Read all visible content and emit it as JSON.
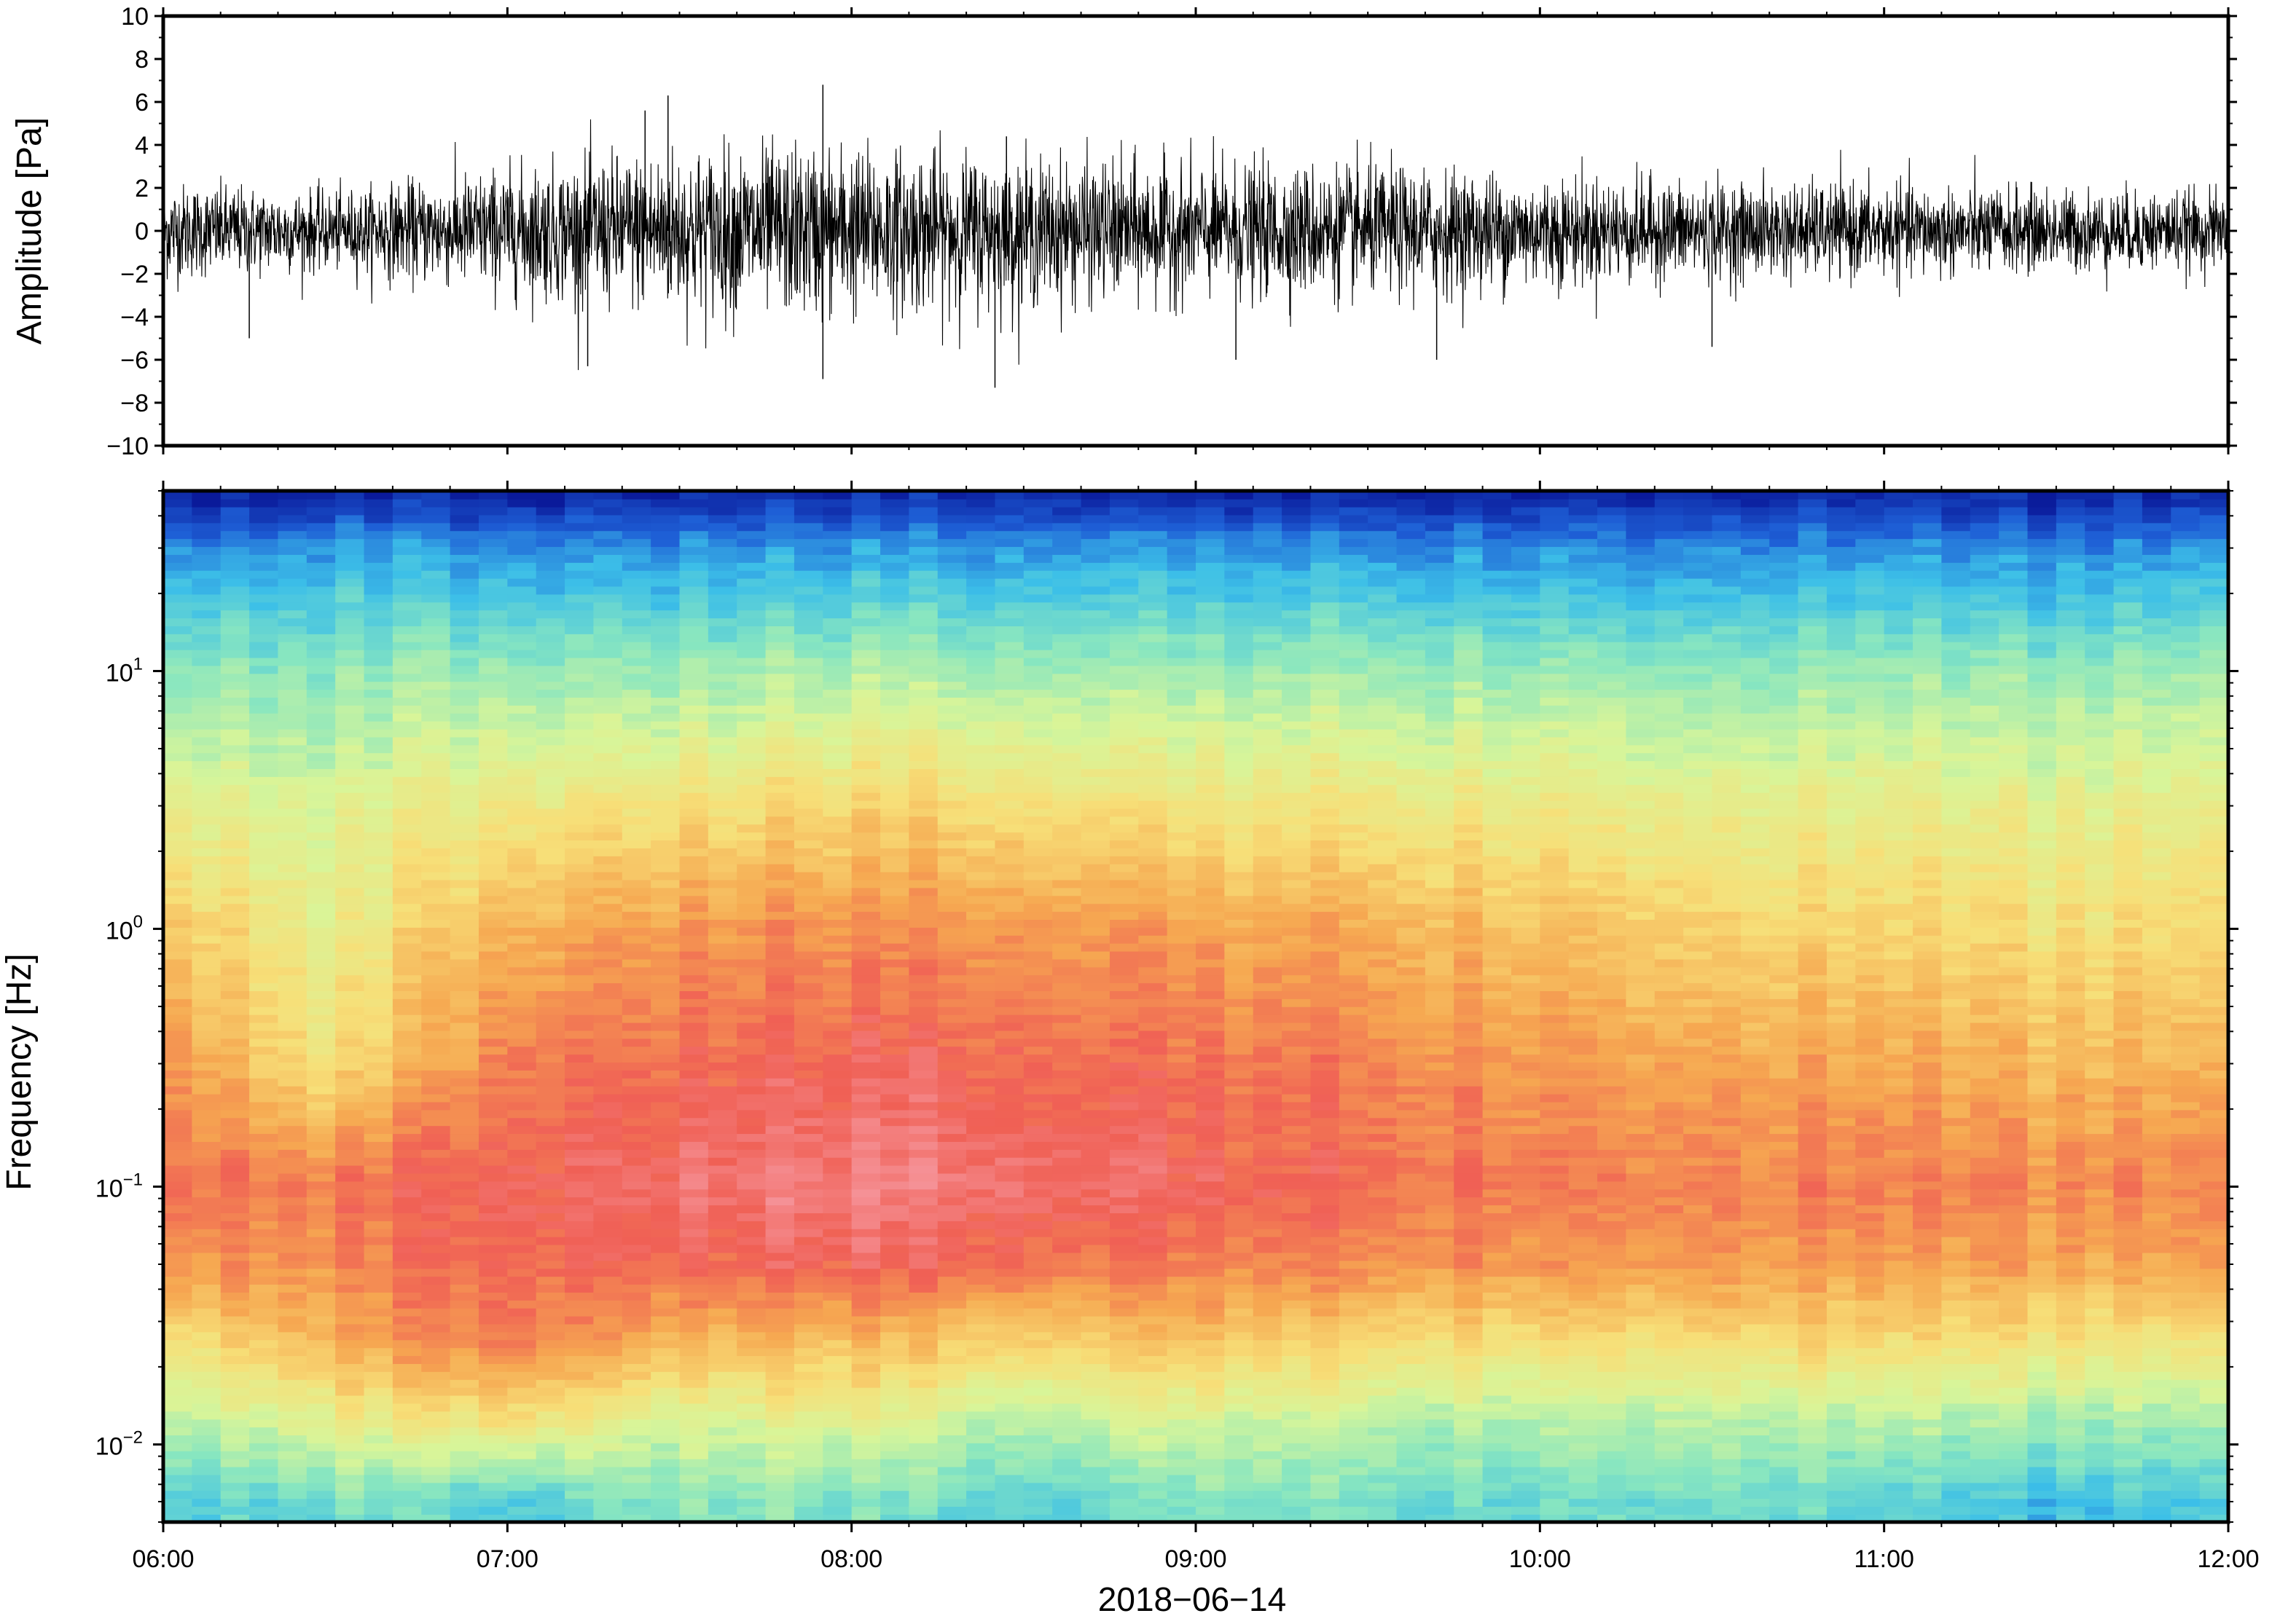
{
  "chart_data": [
    {
      "type": "line",
      "ylabel": "Amplitude [Pa]",
      "xlabel": "",
      "ylim": [
        -10,
        10
      ],
      "y_ticks": [
        -10,
        -8,
        -6,
        -4,
        -2,
        0,
        2,
        4,
        6,
        8,
        10
      ],
      "y_tick_labels": [
        "−10",
        "−8",
        "−6",
        "−4",
        "−2",
        "0",
        "2",
        "4",
        "6",
        "8",
        "10"
      ],
      "x_range": [
        "06:00",
        "12:00"
      ],
      "line_color": "#000000",
      "grid": false,
      "envelope": {
        "time": [
          "06:00",
          "06:30",
          "07:00",
          "07:30",
          "08:00",
          "08:30",
          "09:00",
          "09:30",
          "10:00",
          "10:30",
          "11:00",
          "11:30",
          "12:00"
        ],
        "amplitude": [
          2.0,
          1.6,
          2.6,
          3.4,
          3.5,
          3.0,
          2.7,
          2.7,
          2.3,
          2.0,
          1.9,
          1.7,
          1.6
        ]
      },
      "peaks": [
        {
          "time": "06:15",
          "value": -5.0
        },
        {
          "time": "07:14",
          "value": -6.3
        },
        {
          "time": "07:24",
          "value": 5.6
        },
        {
          "time": "07:28",
          "value": 6.3
        },
        {
          "time": "07:55",
          "value": 6.8
        },
        {
          "time": "07:55",
          "value": -6.9
        },
        {
          "time": "08:25",
          "value": -7.3
        },
        {
          "time": "08:27",
          "value": 4.4
        },
        {
          "time": "09:07",
          "value": -6.0
        },
        {
          "time": "09:42",
          "value": -6.0
        },
        {
          "time": "10:30",
          "value": -5.4
        }
      ]
    },
    {
      "type": "heatmap",
      "ylabel": "Frequency [Hz]",
      "xlabel": "2018−06−14",
      "yscale": "log",
      "ylim": [
        0.005,
        50
      ],
      "y_ticks": [
        0.01,
        0.1,
        1,
        10
      ],
      "y_tick_labels": [
        {
          "base": "10",
          "exp": "−2"
        },
        {
          "base": "10",
          "exp": "−1"
        },
        {
          "base": "10",
          "exp": "0"
        },
        {
          "base": "10",
          "exp": "1"
        }
      ],
      "x_ticks": [
        "06:00",
        "07:00",
        "08:00",
        "09:00",
        "10:00",
        "11:00",
        "12:00"
      ],
      "x_range": [
        "06:00",
        "12:00"
      ],
      "colormap": [
        "#0a1a9a",
        "#1e5fd6",
        "#3cbfe8",
        "#88e6c0",
        "#d8f599",
        "#f7df78",
        "#f6a851",
        "#f06055",
        "#f69aa2"
      ],
      "power_range": [
        0,
        1
      ],
      "power_levels": {
        "time": [
          "06:00",
          "06:30",
          "07:00",
          "07:30",
          "08:00",
          "08:30",
          "09:00",
          "09:30",
          "10:00",
          "10:30",
          "11:00",
          "11:30",
          "12:00"
        ],
        "frequency_hz": [
          0.006,
          0.012,
          0.025,
          0.05,
          0.1,
          0.3,
          1,
          3,
          10,
          30,
          48
        ],
        "values": [
          [
            0.3,
            0.36,
            0.3,
            0.4,
            0.36,
            0.3,
            0.36,
            0.36,
            0.33,
            0.36,
            0.3,
            0.26,
            0.26
          ],
          [
            0.46,
            0.55,
            0.62,
            0.5,
            0.53,
            0.44,
            0.5,
            0.46,
            0.44,
            0.46,
            0.44,
            0.42,
            0.4
          ],
          [
            0.62,
            0.74,
            0.84,
            0.74,
            0.7,
            0.66,
            0.68,
            0.65,
            0.62,
            0.64,
            0.62,
            0.6,
            0.58
          ],
          [
            0.8,
            0.8,
            0.88,
            0.86,
            0.88,
            0.84,
            0.82,
            0.8,
            0.78,
            0.78,
            0.76,
            0.75,
            0.74
          ],
          [
            0.86,
            0.84,
            0.9,
            0.93,
            0.95,
            0.92,
            0.89,
            0.86,
            0.83,
            0.82,
            0.81,
            0.8,
            0.79
          ],
          [
            0.8,
            0.62,
            0.84,
            0.86,
            0.88,
            0.86,
            0.84,
            0.82,
            0.78,
            0.76,
            0.74,
            0.72,
            0.7
          ],
          [
            0.7,
            0.56,
            0.74,
            0.78,
            0.79,
            0.78,
            0.76,
            0.74,
            0.7,
            0.66,
            0.64,
            0.62,
            0.62
          ],
          [
            0.56,
            0.52,
            0.6,
            0.62,
            0.64,
            0.62,
            0.6,
            0.6,
            0.58,
            0.56,
            0.55,
            0.55,
            0.54
          ],
          [
            0.4,
            0.4,
            0.42,
            0.42,
            0.43,
            0.42,
            0.42,
            0.42,
            0.41,
            0.4,
            0.4,
            0.4,
            0.4
          ],
          [
            0.2,
            0.22,
            0.2,
            0.2,
            0.2,
            0.2,
            0.2,
            0.2,
            0.19,
            0.19,
            0.18,
            0.18,
            0.18
          ],
          [
            0.02,
            0.03,
            0.03,
            0.03,
            0.03,
            0.03,
            0.03,
            0.03,
            0.03,
            0.03,
            0.03,
            0.02,
            0.02
          ]
        ]
      }
    }
  ]
}
